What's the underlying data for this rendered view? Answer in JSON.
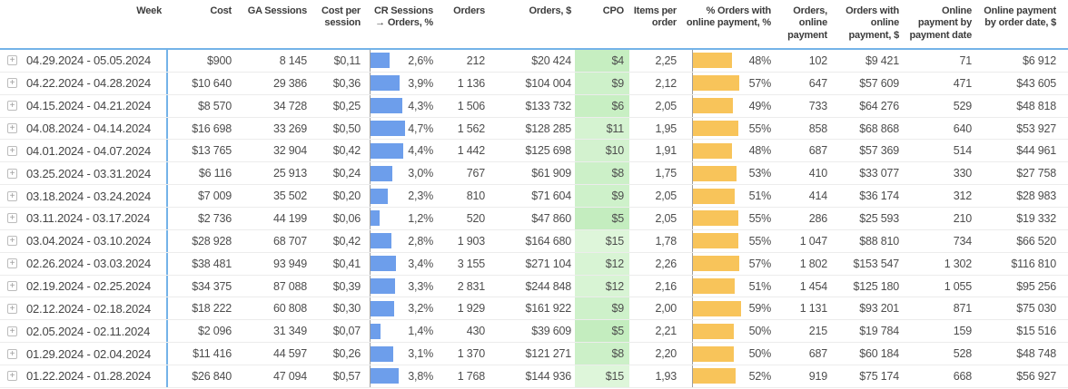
{
  "colors": {
    "bar_blue": "#6d9eeb",
    "bar_orange": "#f8c45a",
    "header_line_blue": "#74b3e8",
    "row_divider": "#ececec",
    "axis_gray": "#9e9e9e",
    "cpo_green_low": "#c4edbf",
    "cpo_green_high": "#def6da"
  },
  "icons": {
    "expand_glyph": "+"
  },
  "chart_data": {
    "type": "table",
    "title": "",
    "columns": [
      {
        "label": "Week"
      },
      {
        "label": "Cost"
      },
      {
        "label": "GA Sessions"
      },
      {
        "label": "Cost per session"
      },
      {
        "label": "CR Sessions → Orders, %"
      },
      {
        "label": "Orders"
      },
      {
        "label": "Orders, $"
      },
      {
        "label": "CPO"
      },
      {
        "label": "Items per order"
      },
      {
        "label": "% Orders with online payment, %"
      },
      {
        "label": "Orders, online payment"
      },
      {
        "label": "Orders with online payment, $"
      },
      {
        "label": "Online payment by payment date"
      },
      {
        "label": "Online payment by order date, $"
      }
    ],
    "rows": [
      {
        "week": "04.29.2024 - 05.05.2024",
        "cost": "$900",
        "ga_sessions": "8 145",
        "cost_per_session": "$0,11",
        "cr_pct": "2,6%",
        "cr_value": 2.6,
        "orders": "212",
        "orders_usd": "$20 424",
        "cpo": "$4",
        "cpo_bg": "#c6eec1",
        "items_per_order": "2,25",
        "online_pct": "48%",
        "online_value": 48,
        "orders_online": "102",
        "orders_online_usd": "$9 421",
        "online_by_payment_date": "71",
        "online_by_order_date_usd": "$6 912"
      },
      {
        "week": "04.22.2024 - 04.28.2024",
        "cost": "$10 640",
        "ga_sessions": "29 386",
        "cost_per_session": "$0,36",
        "cr_pct": "3,9%",
        "cr_value": 3.9,
        "orders": "1 136",
        "orders_usd": "$104 004",
        "cpo": "$9",
        "cpo_bg": "#cef1ca",
        "items_per_order": "2,12",
        "online_pct": "57%",
        "online_value": 57,
        "orders_online": "647",
        "orders_online_usd": "$57 609",
        "online_by_payment_date": "471",
        "online_by_order_date_usd": "$43 605"
      },
      {
        "week": "04.15.2024 - 04.21.2024",
        "cost": "$8 570",
        "ga_sessions": "34 728",
        "cost_per_session": "$0,25",
        "cr_pct": "4,3%",
        "cr_value": 4.3,
        "orders": "1 506",
        "orders_usd": "$133 732",
        "cpo": "$6",
        "cpo_bg": "#c8efc3",
        "items_per_order": "2,05",
        "online_pct": "49%",
        "online_value": 49,
        "orders_online": "733",
        "orders_online_usd": "$64 276",
        "online_by_payment_date": "529",
        "online_by_order_date_usd": "$48 818"
      },
      {
        "week": "04.08.2024 - 04.14.2024",
        "cost": "$16 698",
        "ga_sessions": "33 269",
        "cost_per_session": "$0,50",
        "cr_pct": "4,7%",
        "cr_value": 4.7,
        "orders": "1 562",
        "orders_usd": "$128 285",
        "cpo": "$11",
        "cpo_bg": "#d5f3d1",
        "items_per_order": "1,95",
        "online_pct": "55%",
        "online_value": 55,
        "orders_online": "858",
        "orders_online_usd": "$68 868",
        "online_by_payment_date": "640",
        "online_by_order_date_usd": "$53 927"
      },
      {
        "week": "04.01.2024 - 04.07.2024",
        "cost": "$13 765",
        "ga_sessions": "32 904",
        "cost_per_session": "$0,42",
        "cr_pct": "4,4%",
        "cr_value": 4.4,
        "orders": "1 442",
        "orders_usd": "$125 698",
        "cpo": "$10",
        "cpo_bg": "#d3f2cf",
        "items_per_order": "1,91",
        "online_pct": "48%",
        "online_value": 48,
        "orders_online": "687",
        "orders_online_usd": "$57 369",
        "online_by_payment_date": "514",
        "online_by_order_date_usd": "$44 961"
      },
      {
        "week": "03.25.2024 - 03.31.2024",
        "cost": "$6 116",
        "ga_sessions": "25 913",
        "cost_per_session": "$0,24",
        "cr_pct": "3,0%",
        "cr_value": 3.0,
        "orders": "767",
        "orders_usd": "$61 909",
        "cpo": "$8",
        "cpo_bg": "#ccf0c8",
        "items_per_order": "1,75",
        "online_pct": "53%",
        "online_value": 53,
        "orders_online": "410",
        "orders_online_usd": "$33 077",
        "online_by_payment_date": "330",
        "online_by_order_date_usd": "$27 758"
      },
      {
        "week": "03.18.2024 - 03.24.2024",
        "cost": "$7 009",
        "ga_sessions": "35 502",
        "cost_per_session": "$0,20",
        "cr_pct": "2,3%",
        "cr_value": 2.3,
        "orders": "810",
        "orders_usd": "$71 604",
        "cpo": "$9",
        "cpo_bg": "#cef1ca",
        "items_per_order": "2,05",
        "online_pct": "51%",
        "online_value": 51,
        "orders_online": "414",
        "orders_online_usd": "$36 174",
        "online_by_payment_date": "312",
        "online_by_order_date_usd": "$28 983"
      },
      {
        "week": "03.11.2024 - 03.17.2024",
        "cost": "$2 736",
        "ga_sessions": "44 199",
        "cost_per_session": "$0,06",
        "cr_pct": "1,2%",
        "cr_value": 1.2,
        "orders": "520",
        "orders_usd": "$47 860",
        "cpo": "$5",
        "cpo_bg": "#c4edbf",
        "items_per_order": "2,05",
        "online_pct": "55%",
        "online_value": 55,
        "orders_online": "286",
        "orders_online_usd": "$25 593",
        "online_by_payment_date": "210",
        "online_by_order_date_usd": "$19 332"
      },
      {
        "week": "03.04.2024 - 03.10.2024",
        "cost": "$28 928",
        "ga_sessions": "68 707",
        "cost_per_session": "$0,42",
        "cr_pct": "2,8%",
        "cr_value": 2.8,
        "orders": "1 903",
        "orders_usd": "$164 680",
        "cpo": "$15",
        "cpo_bg": "#def6da",
        "items_per_order": "1,78",
        "online_pct": "55%",
        "online_value": 55,
        "orders_online": "1 047",
        "orders_online_usd": "$88 810",
        "online_by_payment_date": "734",
        "online_by_order_date_usd": "$66 520"
      },
      {
        "week": "02.26.2024 - 03.03.2024",
        "cost": "$38 481",
        "ga_sessions": "93 949",
        "cost_per_session": "$0,41",
        "cr_pct": "3,4%",
        "cr_value": 3.4,
        "orders": "3 155",
        "orders_usd": "$271 104",
        "cpo": "$12",
        "cpo_bg": "#d8f4d4",
        "items_per_order": "2,26",
        "online_pct": "57%",
        "online_value": 57,
        "orders_online": "1 802",
        "orders_online_usd": "$153 547",
        "online_by_payment_date": "1 302",
        "online_by_order_date_usd": "$116 810"
      },
      {
        "week": "02.19.2024 - 02.25.2024",
        "cost": "$34 375",
        "ga_sessions": "87 088",
        "cost_per_session": "$0,39",
        "cr_pct": "3,3%",
        "cr_value": 3.3,
        "orders": "2 831",
        "orders_usd": "$244 848",
        "cpo": "$12",
        "cpo_bg": "#d8f4d4",
        "items_per_order": "2,16",
        "online_pct": "51%",
        "online_value": 51,
        "orders_online": "1 454",
        "orders_online_usd": "$125 180",
        "online_by_payment_date": "1 055",
        "online_by_order_date_usd": "$95 256"
      },
      {
        "week": "02.12.2024 - 02.18.2024",
        "cost": "$18 222",
        "ga_sessions": "60 808",
        "cost_per_session": "$0,30",
        "cr_pct": "3,2%",
        "cr_value": 3.2,
        "orders": "1 929",
        "orders_usd": "$161 922",
        "cpo": "$9",
        "cpo_bg": "#cef1ca",
        "items_per_order": "2,00",
        "online_pct": "59%",
        "online_value": 59,
        "orders_online": "1 131",
        "orders_online_usd": "$93 201",
        "online_by_payment_date": "871",
        "online_by_order_date_usd": "$75 030"
      },
      {
        "week": "02.05.2024 - 02.11.2024",
        "cost": "$2 096",
        "ga_sessions": "31 349",
        "cost_per_session": "$0,07",
        "cr_pct": "1,4%",
        "cr_value": 1.4,
        "orders": "430",
        "orders_usd": "$39 609",
        "cpo": "$5",
        "cpo_bg": "#c4edbf",
        "items_per_order": "2,21",
        "online_pct": "50%",
        "online_value": 50,
        "orders_online": "215",
        "orders_online_usd": "$19 784",
        "online_by_payment_date": "159",
        "online_by_order_date_usd": "$15 516"
      },
      {
        "week": "01.29.2024 - 02.04.2024",
        "cost": "$11 416",
        "ga_sessions": "44 597",
        "cost_per_session": "$0,26",
        "cr_pct": "3,1%",
        "cr_value": 3.1,
        "orders": "1 370",
        "orders_usd": "$121 271",
        "cpo": "$8",
        "cpo_bg": "#ccf0c8",
        "items_per_order": "2,20",
        "online_pct": "50%",
        "online_value": 50,
        "orders_online": "687",
        "orders_online_usd": "$60 184",
        "online_by_payment_date": "528",
        "online_by_order_date_usd": "$48 748"
      },
      {
        "week": "01.22.2024 - 01.28.2024",
        "cost": "$26 840",
        "ga_sessions": "47 094",
        "cost_per_session": "$0,57",
        "cr_pct": "3,8%",
        "cr_value": 3.8,
        "orders": "1 768",
        "orders_usd": "$144 936",
        "cpo": "$15",
        "cpo_bg": "#def6da",
        "items_per_order": "1,93",
        "online_pct": "52%",
        "online_value": 52,
        "orders_online": "919",
        "orders_online_usd": "$75 174",
        "online_by_payment_date": "668",
        "online_by_order_date_usd": "$56 927"
      }
    ],
    "layout_hints": {
      "cr_bar_max_pct": 4.7,
      "online_bar_max_pct": 59,
      "in_cell_bars": [
        "CR Sessions → Orders, %",
        "% Orders with online payment, %"
      ],
      "conditional_green_column": "CPO"
    }
  }
}
